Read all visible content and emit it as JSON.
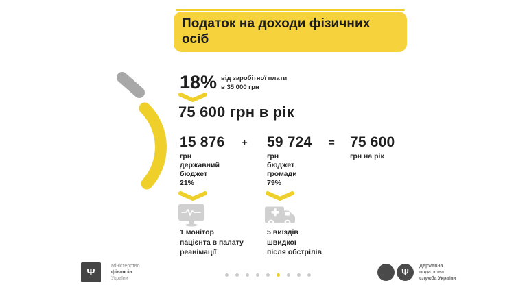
{
  "title": "Податок на доходи фізичних осіб",
  "colors": {
    "title_yellow": "#f6d23c",
    "accent_yellow": "#efcf2a",
    "icon_gray": "#d0d0d0",
    "segment_gray": "#a8a8a8",
    "text_dark": "#1f1f1f",
    "footer_gray": "#8c8c8c",
    "dot_gray": "#cbcbcb",
    "logo_dark": "#454545"
  },
  "rate": {
    "percent": "18%",
    "note_line1": "від заробітної плати",
    "note_line2": "в 35 000 грн"
  },
  "annual_total": "75 600 грн в рік",
  "breakdown": {
    "col1": {
      "value": "15 876",
      "lines": [
        "грн",
        "державний",
        "бюджет",
        "21%"
      ]
    },
    "plus": "+",
    "col2": {
      "value": "59 724",
      "lines": [
        "грн",
        "бюджет",
        "громади",
        "79%"
      ]
    },
    "equals": "=",
    "total": {
      "value": "75 600",
      "label": "грн на рік"
    }
  },
  "outcomes": [
    {
      "icon": "patient-monitor-icon",
      "lines": [
        "1 монітор",
        "пацієнта в палату",
        "реанімації"
      ]
    },
    {
      "icon": "ambulance-icon",
      "lines": [
        "5 виїздів",
        "швидкої",
        "після обстрілів"
      ]
    }
  ],
  "footer": {
    "left_org": {
      "line1": "Міністерство",
      "line2": "фінансів",
      "line3": "України"
    },
    "right_org": {
      "line1": "Державна",
      "line2": "податкова",
      "line3": "служба України"
    },
    "trident_glyph": "Ψ",
    "dots": {
      "count": 9,
      "active_index": 5
    }
  }
}
